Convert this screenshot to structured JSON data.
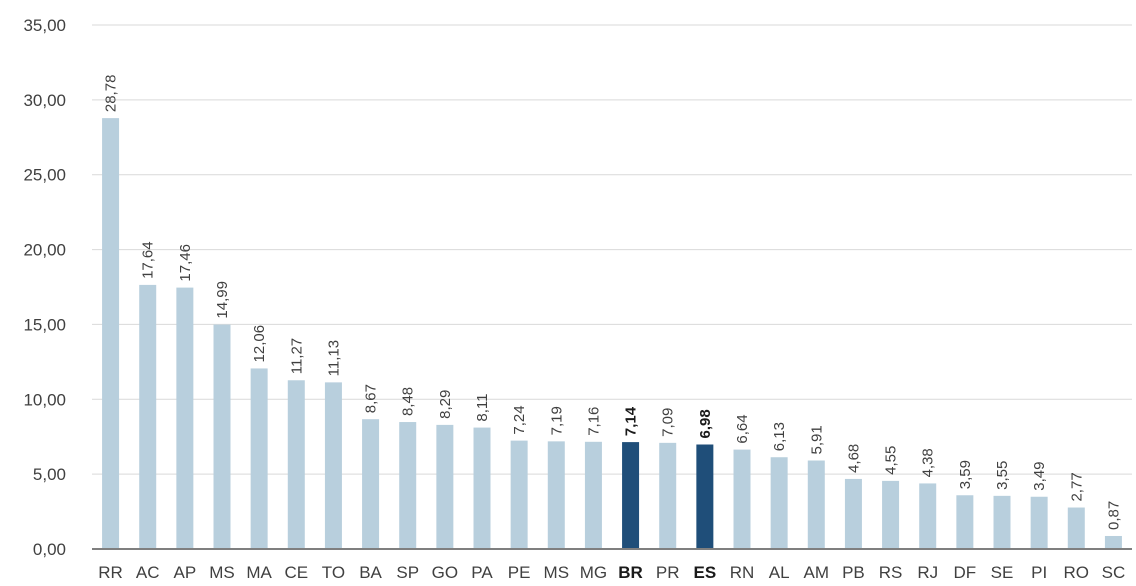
{
  "chart_data": {
    "type": "bar",
    "title": "",
    "xlabel": "",
    "ylabel": "",
    "ylim": [
      0,
      35
    ],
    "yticks": [
      "0,00",
      "5,00",
      "10,00",
      "15,00",
      "20,00",
      "25,00",
      "30,00",
      "35,00"
    ],
    "grid": true,
    "categories": [
      "RR",
      "AC",
      "AP",
      "MS",
      "MA",
      "CE",
      "TO",
      "BA",
      "SP",
      "GO",
      "PA",
      "PE",
      "MS",
      "MG",
      "BR",
      "PR",
      "ES",
      "RN",
      "AL",
      "AM",
      "PB",
      "RS",
      "RJ",
      "DF",
      "SE",
      "PI",
      "RO",
      "SC"
    ],
    "values": [
      28.78,
      17.64,
      17.46,
      14.99,
      12.06,
      11.27,
      11.13,
      8.67,
      8.48,
      8.29,
      8.11,
      7.24,
      7.19,
      7.16,
      7.14,
      7.09,
      6.98,
      6.64,
      6.13,
      5.91,
      4.68,
      4.55,
      4.38,
      3.59,
      3.55,
      3.49,
      2.77,
      0.87
    ],
    "value_labels": [
      "28,78",
      "17,64",
      "17,46",
      "14,99",
      "12,06",
      "11,27",
      "11,13",
      "8,67",
      "8,48",
      "8,29",
      "8,11",
      "7,24",
      "7,19",
      "7,16",
      "7,14",
      "7,09",
      "6,98",
      "6,64",
      "6,13",
      "5,91",
      "4,68",
      "4,55",
      "4,38",
      "3,59",
      "3,55",
      "3,49",
      "2,77",
      "0,87"
    ],
    "highlighted": [
      "BR",
      "ES"
    ],
    "colors": {
      "bar": "#b8cfdd",
      "highlight": "#1f4e79",
      "grid": "#d9d9d9",
      "axis": "#7f7f7f"
    }
  }
}
